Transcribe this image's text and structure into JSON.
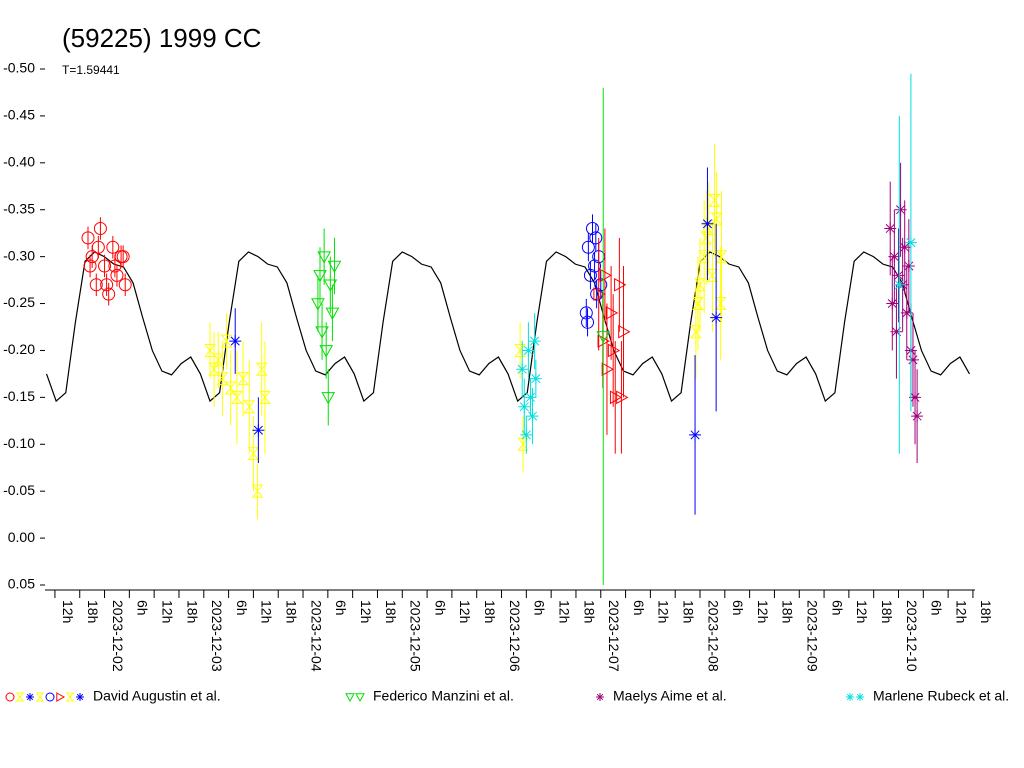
{
  "chart_data": {
    "type": "lightcurve",
    "title": "(59225) 1999 CC",
    "subtitle": "T=1.59441",
    "xlim": [
      9.6,
      234.5
    ],
    "ylim": [
      0.05,
      -0.5
    ],
    "xticks": [
      {
        "value": 12,
        "label": "12h"
      },
      {
        "value": 18,
        "label": "18h"
      },
      {
        "value": 24,
        "label": "2023-12-02"
      },
      {
        "value": 30,
        "label": "6h"
      },
      {
        "value": 36,
        "label": "12h"
      },
      {
        "value": 42,
        "label": "18h"
      },
      {
        "value": 48,
        "label": "2023-12-03"
      },
      {
        "value": 54,
        "label": "6h"
      },
      {
        "value": 60,
        "label": "12h"
      },
      {
        "value": 66,
        "label": "18h"
      },
      {
        "value": 72,
        "label": "2023-12-04"
      },
      {
        "value": 78,
        "label": "6h"
      },
      {
        "value": 84,
        "label": "12h"
      },
      {
        "value": 90,
        "label": "18h"
      },
      {
        "value": 96,
        "label": "2023-12-05"
      },
      {
        "value": 102,
        "label": "6h"
      },
      {
        "value": 108,
        "label": "12h"
      },
      {
        "value": 114,
        "label": "18h"
      },
      {
        "value": 120,
        "label": "2023-12-06"
      },
      {
        "value": 126,
        "label": "6h"
      },
      {
        "value": 132,
        "label": "12h"
      },
      {
        "value": 138,
        "label": "18h"
      },
      {
        "value": 144,
        "label": "2023-12-07"
      },
      {
        "value": 150,
        "label": "6h"
      },
      {
        "value": 156,
        "label": "12h"
      },
      {
        "value": 162,
        "label": "18h"
      },
      {
        "value": 168,
        "label": "2023-12-08"
      },
      {
        "value": 174,
        "label": "6h"
      },
      {
        "value": 180,
        "label": "12h"
      },
      {
        "value": 186,
        "label": "18h"
      },
      {
        "value": 192,
        "label": "2023-12-09"
      },
      {
        "value": 198,
        "label": "6h"
      },
      {
        "value": 204,
        "label": "12h"
      },
      {
        "value": 210,
        "label": "18h"
      },
      {
        "value": 216,
        "label": "2023-12-10"
      },
      {
        "value": 222,
        "label": "6h"
      },
      {
        "value": 228,
        "label": "12h"
      },
      {
        "value": 234,
        "label": "18h"
      }
    ],
    "yticks": [
      {
        "value": -0.5,
        "label": "-0.50"
      },
      -0.45,
      {
        "value": -0.4,
        "label": "-0.40"
      },
      -0.35,
      {
        "value": -0.3,
        "label": "-0.30"
      },
      -0.25,
      {
        "value": -0.2,
        "label": "-0.20"
      },
      -0.15,
      {
        "value": -0.1,
        "label": "-0.10"
      },
      -0.05,
      {
        "value": 0,
        "label": "0.00"
      },
      0.05
    ],
    "model": {
      "color": "#000000",
      "x": [
        9.975,
        12.3,
        14.625,
        16.95,
        19.275,
        21.6,
        23.925,
        26.25,
        28.575,
        30.9,
        33.225,
        35.55,
        37.875,
        40.2,
        42.525,
        44.85,
        47.175,
        49.5,
        51.825,
        54.15,
        56.475,
        58.8,
        61.125,
        63.45,
        65.775,
        68.1,
        70.425,
        72.75,
        75.075,
        77.4,
        79.725,
        82.05,
        84.375,
        86.7,
        89.025,
        91.35,
        93.675,
        96,
        98.325,
        100.65,
        102.975,
        105.3,
        107.625,
        109.95,
        112.275,
        114.6,
        116.925,
        119.25,
        121.575,
        123.9,
        126.225,
        128.55,
        130.875,
        133.2,
        135.525,
        137.85,
        140.175,
        142.5,
        144.825,
        147.15,
        149.475,
        151.8,
        154.125,
        156.45,
        158.775,
        161.1,
        163.425,
        165.75,
        168.075,
        170.4,
        172.725,
        175.05,
        177.375,
        179.7,
        182.025,
        184.35,
        186.675,
        189,
        191.325,
        193.65,
        195.975,
        198.3,
        200.625,
        202.95,
        205.275,
        207.6,
        209.925,
        212.25,
        214.575,
        216.9,
        219.225,
        221.55,
        223.875,
        226.2,
        228.525,
        230.85,
        233.175
      ],
      "values": [
        -0.175,
        -0.146,
        -0.155,
        -0.23,
        -0.295,
        -0.305,
        -0.3,
        -0.292,
        -0.289,
        -0.272,
        -0.235,
        -0.2,
        -0.178,
        -0.174,
        -0.186,
        -0.193,
        -0.175,
        -0.146,
        -0.155,
        -0.23,
        -0.295,
        -0.305,
        -0.3,
        -0.292,
        -0.289,
        -0.272,
        -0.235,
        -0.2,
        -0.178,
        -0.174,
        -0.186,
        -0.193,
        -0.175,
        -0.146,
        -0.155,
        -0.23,
        -0.295,
        -0.305,
        -0.3,
        -0.292,
        -0.289,
        -0.272,
        -0.235,
        -0.2,
        -0.178,
        -0.174,
        -0.186,
        -0.193,
        -0.175,
        -0.146,
        -0.155,
        -0.23,
        -0.295,
        -0.305,
        -0.3,
        -0.292,
        -0.289,
        -0.272,
        -0.235,
        -0.2,
        -0.178,
        -0.174,
        -0.186,
        -0.193,
        -0.175,
        -0.146,
        -0.155,
        -0.23,
        -0.295,
        -0.305,
        -0.3,
        -0.292,
        -0.289,
        -0.272,
        -0.235,
        -0.2,
        -0.178,
        -0.174,
        -0.186,
        -0.193,
        -0.175,
        -0.146,
        -0.155,
        -0.23,
        -0.295,
        -0.305,
        -0.3,
        -0.292,
        -0.289,
        -0.272,
        -0.235,
        -0.2,
        -0.178,
        -0.174,
        -0.186,
        -0.193,
        -0.175
      ]
    },
    "series": [
      {
        "name": "David Augustin et al.",
        "sessions": [
          {
            "color": "#ff0000",
            "marker": "circle",
            "x": [
              20,
              21,
              22,
              23,
              24,
              25,
              26,
              27,
              28,
              29,
              20.5,
              22.5,
              24.5,
              26.5,
              28.5
            ],
            "values": [
              -0.32,
              -0.3,
              -0.27,
              -0.33,
              -0.29,
              -0.26,
              -0.31,
              -0.28,
              -0.3,
              -0.27,
              -0.29,
              -0.31,
              -0.27,
              -0.29,
              -0.3
            ],
            "errors": [
              0.012,
              0.012,
              0.012,
              0.012,
              0.012,
              0.012,
              0.012,
              0.012,
              0.012,
              0.012,
              0.012,
              0.012,
              0.012,
              0.012,
              0.012
            ]
          },
          {
            "color": "#ffff00",
            "marker": "hourglass",
            "x": [
              49.5,
              50.5,
              51.5,
              52.5,
              53.5,
              54.5,
              56,
              57.5,
              59,
              60,
              61,
              62,
              62.8
            ],
            "values": [
              -0.2,
              -0.18,
              -0.19,
              -0.17,
              -0.21,
              -0.16,
              -0.15,
              -0.17,
              -0.14,
              -0.09,
              -0.05,
              -0.18,
              -0.15
            ],
            "errors": [
              0.03,
              0.04,
              0.03,
              0.04,
              0.03,
              0.04,
              0.05,
              0.04,
              0.05,
              0.04,
              0.03,
              0.05,
              0.06
            ]
          },
          {
            "color": "#0000ff",
            "marker": "star",
            "x": [
              55.6,
              61.2
            ],
            "values": [
              -0.21,
              -0.115
            ],
            "errors": [
              0.035,
              0.035
            ]
          },
          {
            "color": "#ffff00",
            "marker": "hourglass",
            "x": [
              124.5,
              125.2
            ],
            "values": [
              -0.2,
              -0.1
            ],
            "errors": [
              0.03,
              0.03
            ]
          },
          {
            "color": "#0000ff",
            "marker": "circle",
            "x": [
              140.5,
              141,
              141.5,
              142,
              142.5,
              143,
              143.5,
              144,
              140.8,
              142.8
            ],
            "values": [
              -0.24,
              -0.31,
              -0.28,
              -0.33,
              -0.29,
              -0.26,
              -0.3,
              -0.27,
              -0.23,
              -0.32
            ],
            "errors": [
              0.015,
              0.015,
              0.015,
              0.015,
              0.015,
              0.015,
              0.015,
              0.015,
              0.015,
              0.015
            ]
          },
          {
            "color": "#ff0000",
            "marker": "triangle-right",
            "x": [
              143.5,
              144.5,
              145.5,
              146.5,
              147.5,
              148.5,
              149.5,
              145,
              147,
              149
            ],
            "values": [
              -0.26,
              -0.21,
              -0.18,
              -0.24,
              -0.15,
              -0.27,
              -0.22,
              -0.28,
              -0.2,
              -0.15
            ],
            "errors": [
              0.06,
              0.05,
              0.07,
              0.05,
              0.06,
              0.05,
              0.07,
              0.05,
              0.06,
              0.06
            ]
          },
          {
            "color": "#ffff00",
            "marker": "hourglass",
            "x": [
              167,
              168,
              169,
              170,
              171,
              172,
              173,
              167.5,
              169.5,
              171.5,
              173.2
            ],
            "values": [
              -0.22,
              -0.27,
              -0.3,
              -0.33,
              -0.28,
              -0.34,
              -0.25,
              -0.25,
              -0.32,
              -0.36,
              -0.3
            ],
            "errors": [
              0.05,
              0.05,
              0.06,
              0.05,
              0.06,
              0.05,
              0.06,
              0.05,
              0.05,
              0.06,
              0.07
            ]
          },
          {
            "color": "#0000ff",
            "marker": "star",
            "x": [
              166.8,
              169.8,
              171.9
            ],
            "values": [
              -0.11,
              -0.335,
              -0.235
            ],
            "errors": [
              0.085,
              0.06,
              0.1
            ]
          }
        ]
      },
      {
        "name": "Federico Manzini et al.",
        "sessions": [
          {
            "color": "#00e000",
            "marker": "triangle-down",
            "x": [
              75.6,
              76.1,
              76.6,
              77.1,
              77.6,
              78.1,
              78.6,
              79.1,
              79.6
            ],
            "values": [
              -0.25,
              -0.28,
              -0.22,
              -0.3,
              -0.2,
              -0.15,
              -0.27,
              -0.24,
              -0.29
            ],
            "errors": [
              0.03,
              0.03,
              0.03,
              0.03,
              0.03,
              0.03,
              0.03,
              0.03,
              0.03
            ]
          },
          {
            "color": "#00e000",
            "marker": "triangle-down",
            "x": [
              144.6
            ],
            "values": [
              -0.215
            ],
            "errors": [
              0.265
            ]
          }
        ]
      },
      {
        "name": "Maelys Aime et al.",
        "sessions": [
          {
            "color": "#a0007a",
            "marker": "star",
            "x": [
              214,
              214.5,
              215,
              215.5,
              216,
              216.5,
              217,
              217.5,
              218,
              218.5,
              219,
              219.5,
              220,
              220.5
            ],
            "values": [
              -0.33,
              -0.25,
              -0.3,
              -0.22,
              -0.28,
              -0.35,
              -0.27,
              -0.31,
              -0.24,
              -0.29,
              -0.2,
              -0.19,
              -0.15,
              -0.13
            ],
            "errors": [
              0.05,
              0.05,
              0.05,
              0.05,
              0.05,
              0.05,
              0.05,
              0.05,
              0.05,
              0.05,
              0.05,
              0.05,
              0.05,
              0.05
            ]
          }
        ]
      },
      {
        "name": "Marlene Rubeck et al.",
        "sessions": [
          {
            "color": "#00e0e0",
            "marker": "star",
            "x": [
              125,
              125.5,
              126,
              126.5,
              127,
              127.5,
              128,
              128.3
            ],
            "values": [
              -0.18,
              -0.14,
              -0.11,
              -0.2,
              -0.15,
              -0.13,
              -0.21,
              -0.17
            ],
            "errors": [
              0.03,
              0.03,
              0.02,
              0.03,
              0.02,
              0.03,
              0.03,
              0.02
            ]
          },
          {
            "color": "#00e0e0",
            "marker": "star",
            "x": [
              216.2,
              219
            ],
            "values": [
              -0.27,
              -0.315
            ],
            "errors": [
              0.18,
              0.18
            ]
          }
        ]
      }
    ]
  }
}
